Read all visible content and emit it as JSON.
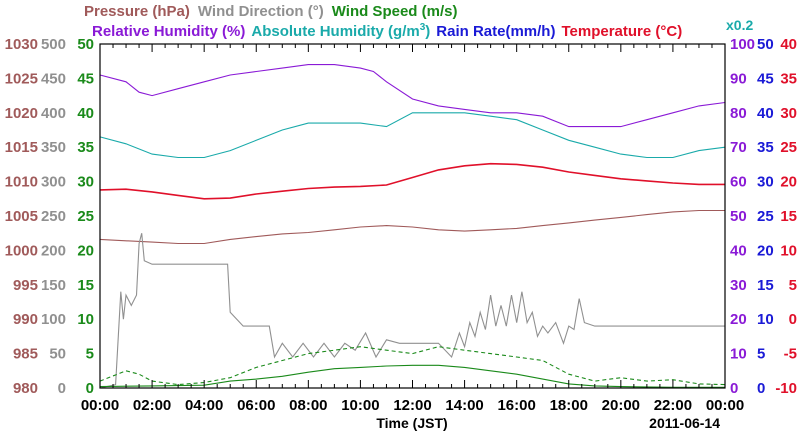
{
  "chart_data": {
    "type": "line",
    "date_label": "2011-06-14",
    "xlabel": "Time (JST)",
    "x_ticks": [
      "00:00",
      "02:00",
      "04:00",
      "06:00",
      "08:00",
      "10:00",
      "12:00",
      "14:00",
      "16:00",
      "18:00",
      "20:00",
      "22:00",
      "00:00"
    ],
    "xlim_hours": [
      0,
      24
    ],
    "legend": {
      "row1": [
        {
          "text": "Pressure (hPa)",
          "color": "#a05a5a"
        },
        {
          "text": "Wind Direction (°)",
          "color": "#909090"
        },
        {
          "text": "Wind Speed (m/s)",
          "color": "#1a8a1a"
        }
      ],
      "row2": [
        {
          "text": "Relative Humidity (%)",
          "color": "#8a1ad6"
        },
        {
          "text": "Absolute Humidity (g/m",
          "sup": "3",
          "close": ")",
          "color": "#1aaaaa"
        },
        {
          "text": "Rain Rate(mm/h)",
          "color": "#1a1ad6"
        },
        {
          "text": "Temperature (°C)",
          "color": "#e0102a"
        }
      ],
      "x02": {
        "text": "x0.2",
        "color": "#1aaaaa"
      }
    },
    "axes": [
      {
        "name": "pressure",
        "color": "#a05a5a",
        "ticks": [
          "1030",
          "1025",
          "1020",
          "1015",
          "1010",
          "1005",
          "1000",
          "995",
          "990",
          "985",
          "980"
        ],
        "range": [
          980,
          1030
        ]
      },
      {
        "name": "wind-direction",
        "color": "#909090",
        "ticks": [
          "500",
          "450",
          "400",
          "350",
          "300",
          "250",
          "200",
          "150",
          "100",
          "50",
          "0"
        ],
        "range": [
          0,
          500
        ]
      },
      {
        "name": "wind-speed",
        "color": "#1a8a1a",
        "ticks": [
          "50",
          "45",
          "40",
          "35",
          "30",
          "25",
          "20",
          "15",
          "10",
          "5",
          "0"
        ],
        "range": [
          0,
          50
        ]
      },
      {
        "name": "relative-humidity",
        "color": "#8a1ad6",
        "ticks": [
          "100",
          "90",
          "80",
          "70",
          "60",
          "50",
          "40",
          "30",
          "20",
          "10",
          "0"
        ],
        "range": [
          0,
          100
        ]
      },
      {
        "name": "rain-rate",
        "color": "#1a1ad6",
        "ticks": [
          "50",
          "45",
          "40",
          "35",
          "30",
          "25",
          "20",
          "15",
          "10",
          "5",
          "0"
        ],
        "range": [
          0,
          50
        ]
      },
      {
        "name": "temperature",
        "color": "#e0102a",
        "ticks": [
          "40",
          "35",
          "30",
          "25",
          "20",
          "15",
          "10",
          "5",
          "0",
          "-5",
          "-10"
        ],
        "range": [
          -10,
          40
        ]
      }
    ],
    "series": [
      {
        "name": "Pressure (hPa)",
        "axis": "pressure",
        "color": "#a05a5a",
        "style": "solid",
        "points": [
          [
            0,
            1001.6
          ],
          [
            1,
            1001.4
          ],
          [
            2,
            1001.2
          ],
          [
            3,
            1001.0
          ],
          [
            4,
            1001.0
          ],
          [
            5,
            1001.6
          ],
          [
            6,
            1002.0
          ],
          [
            7,
            1002.4
          ],
          [
            8,
            1002.6
          ],
          [
            9,
            1003.0
          ],
          [
            10,
            1003.4
          ],
          [
            11,
            1003.6
          ],
          [
            12,
            1003.4
          ],
          [
            13,
            1003.0
          ],
          [
            14,
            1002.8
          ],
          [
            15,
            1003.0
          ],
          [
            16,
            1003.2
          ],
          [
            17,
            1003.6
          ],
          [
            18,
            1004.0
          ],
          [
            19,
            1004.4
          ],
          [
            20,
            1004.8
          ],
          [
            21,
            1005.2
          ],
          [
            22,
            1005.6
          ],
          [
            23,
            1005.8
          ],
          [
            24,
            1005.8
          ]
        ]
      },
      {
        "name": "Wind Direction (°)",
        "axis": "wind-direction",
        "color": "#909090",
        "style": "solid",
        "points": [
          [
            0,
            0
          ],
          [
            0.6,
            5
          ],
          [
            0.8,
            140
          ],
          [
            0.9,
            100
          ],
          [
            1.0,
            135
          ],
          [
            1.2,
            120
          ],
          [
            1.4,
            135
          ],
          [
            1.5,
            210
          ],
          [
            1.6,
            225
          ],
          [
            1.7,
            185
          ],
          [
            2.0,
            180
          ],
          [
            3.0,
            180
          ],
          [
            4.0,
            180
          ],
          [
            4.9,
            180
          ],
          [
            5.0,
            110
          ],
          [
            5.5,
            90
          ],
          [
            6.0,
            90
          ],
          [
            6.5,
            90
          ],
          [
            6.7,
            45
          ],
          [
            7.0,
            65
          ],
          [
            7.4,
            45
          ],
          [
            7.8,
            65
          ],
          [
            8.2,
            45
          ],
          [
            8.6,
            65
          ],
          [
            9.0,
            45
          ],
          [
            9.4,
            65
          ],
          [
            9.8,
            55
          ],
          [
            10.2,
            80
          ],
          [
            10.6,
            45
          ],
          [
            11.0,
            70
          ],
          [
            11.5,
            65
          ],
          [
            12.0,
            65
          ],
          [
            12.5,
            65
          ],
          [
            13.0,
            65
          ],
          [
            13.5,
            45
          ],
          [
            13.8,
            80
          ],
          [
            14.0,
            60
          ],
          [
            14.2,
            95
          ],
          [
            14.4,
            75
          ],
          [
            14.6,
            110
          ],
          [
            14.8,
            85
          ],
          [
            15.0,
            135
          ],
          [
            15.2,
            90
          ],
          [
            15.4,
            120
          ],
          [
            15.6,
            90
          ],
          [
            15.8,
            135
          ],
          [
            16.0,
            95
          ],
          [
            16.2,
            140
          ],
          [
            16.4,
            95
          ],
          [
            16.6,
            110
          ],
          [
            16.8,
            75
          ],
          [
            17.0,
            90
          ],
          [
            17.2,
            80
          ],
          [
            17.5,
            95
          ],
          [
            17.8,
            65
          ],
          [
            18.0,
            90
          ],
          [
            18.2,
            85
          ],
          [
            18.4,
            130
          ],
          [
            18.6,
            95
          ],
          [
            19.0,
            90
          ],
          [
            20.0,
            90
          ],
          [
            21.0,
            90
          ],
          [
            22.0,
            90
          ],
          [
            23.0,
            90
          ],
          [
            24.0,
            90
          ]
        ]
      },
      {
        "name": "Wind Speed (m/s)",
        "axis": "wind-speed",
        "color": "#1a8a1a",
        "style": "solid",
        "points": [
          [
            0,
            0.2
          ],
          [
            2,
            0.3
          ],
          [
            4,
            0.4
          ],
          [
            5,
            1.0
          ],
          [
            6,
            1.3
          ],
          [
            7,
            1.7
          ],
          [
            8,
            2.3
          ],
          [
            9,
            2.8
          ],
          [
            10,
            3.0
          ],
          [
            11,
            3.2
          ],
          [
            12,
            3.3
          ],
          [
            13,
            3.3
          ],
          [
            14,
            3.0
          ],
          [
            15,
            2.5
          ],
          [
            16,
            2.0
          ],
          [
            17,
            1.3
          ],
          [
            18,
            0.6
          ],
          [
            19,
            0.3
          ],
          [
            20,
            0.2
          ],
          [
            22,
            0.1
          ],
          [
            24,
            0.1
          ]
        ]
      },
      {
        "name": "Wind Speed max",
        "axis": "wind-speed",
        "color": "#1a8a1a",
        "style": "dashed",
        "points": [
          [
            0,
            1
          ],
          [
            1,
            2.5
          ],
          [
            1.5,
            2
          ],
          [
            2,
            1
          ],
          [
            3,
            0.5
          ],
          [
            4,
            0.8
          ],
          [
            5,
            1.5
          ],
          [
            6,
            3
          ],
          [
            7,
            4
          ],
          [
            8,
            5
          ],
          [
            9,
            5.5
          ],
          [
            10,
            6
          ],
          [
            11,
            5.5
          ],
          [
            12,
            5
          ],
          [
            13,
            6
          ],
          [
            14,
            5.5
          ],
          [
            15,
            5
          ],
          [
            16,
            4.5
          ],
          [
            17,
            4
          ],
          [
            18,
            2
          ],
          [
            19,
            1
          ],
          [
            20,
            1.5
          ],
          [
            21,
            1
          ],
          [
            22,
            1.2
          ],
          [
            23,
            0.6
          ],
          [
            24,
            0.5
          ]
        ]
      },
      {
        "name": "Relative Humidity (%)",
        "axis": "relative-humidity",
        "color": "#8a1ad6",
        "style": "solid",
        "points": [
          [
            0,
            91
          ],
          [
            1,
            89
          ],
          [
            1.5,
            86
          ],
          [
            2,
            85
          ],
          [
            3,
            87
          ],
          [
            4,
            89
          ],
          [
            5,
            91
          ],
          [
            6,
            92
          ],
          [
            7,
            93
          ],
          [
            8,
            94
          ],
          [
            9,
            94
          ],
          [
            10,
            93
          ],
          [
            10.5,
            92
          ],
          [
            11,
            89
          ],
          [
            12,
            84
          ],
          [
            13,
            82
          ],
          [
            14,
            81
          ],
          [
            15,
            80
          ],
          [
            16,
            80
          ],
          [
            17,
            79
          ],
          [
            18,
            76
          ],
          [
            19,
            76
          ],
          [
            20,
            76
          ],
          [
            21,
            78
          ],
          [
            22,
            80
          ],
          [
            23,
            82
          ],
          [
            24,
            83
          ]
        ]
      },
      {
        "name": "Absolute Humidity (g/m3) x0.2",
        "axis": "relative-humidity",
        "color": "#1aaaaa",
        "style": "solid",
        "points": [
          [
            0,
            73
          ],
          [
            1,
            71
          ],
          [
            2,
            68
          ],
          [
            3,
            67
          ],
          [
            4,
            67
          ],
          [
            5,
            69
          ],
          [
            6,
            72
          ],
          [
            7,
            75
          ],
          [
            8,
            77
          ],
          [
            9,
            77
          ],
          [
            10,
            77
          ],
          [
            11,
            76
          ],
          [
            12,
            80
          ],
          [
            13,
            80
          ],
          [
            14,
            80
          ],
          [
            15,
            79
          ],
          [
            16,
            78
          ],
          [
            17,
            75
          ],
          [
            18,
            72
          ],
          [
            19,
            70
          ],
          [
            20,
            68
          ],
          [
            21,
            67
          ],
          [
            22,
            67
          ],
          [
            23,
            69
          ],
          [
            24,
            70
          ]
        ]
      },
      {
        "name": "Temperature (°C)",
        "axis": "temperature",
        "color": "#e0102a",
        "style": "solid",
        "points": [
          [
            0,
            18.8
          ],
          [
            1,
            18.9
          ],
          [
            2,
            18.5
          ],
          [
            3,
            18.0
          ],
          [
            4,
            17.5
          ],
          [
            5,
            17.6
          ],
          [
            6,
            18.2
          ],
          [
            7,
            18.6
          ],
          [
            8,
            19.0
          ],
          [
            9,
            19.2
          ],
          [
            10,
            19.3
          ],
          [
            11,
            19.5
          ],
          [
            12,
            20.6
          ],
          [
            13,
            21.7
          ],
          [
            14,
            22.3
          ],
          [
            15,
            22.6
          ],
          [
            16,
            22.5
          ],
          [
            17,
            22.1
          ],
          [
            18,
            21.4
          ],
          [
            19,
            20.9
          ],
          [
            20,
            20.4
          ],
          [
            21,
            20.1
          ],
          [
            22,
            19.8
          ],
          [
            23,
            19.6
          ],
          [
            24,
            19.6
          ]
        ]
      },
      {
        "name": "Rain Rate(mm/h)",
        "axis": "rain-rate",
        "color": "#1a1ad6",
        "style": "solid",
        "points": [
          [
            0,
            0
          ],
          [
            24,
            0
          ]
        ]
      }
    ]
  }
}
